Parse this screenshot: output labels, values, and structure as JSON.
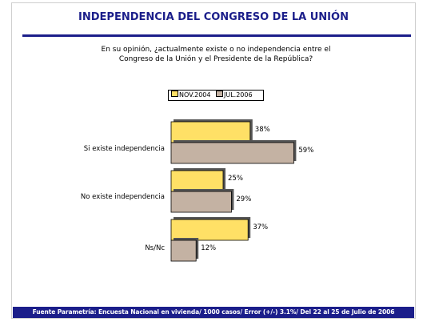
{
  "header": {
    "title": "INDEPENDENCIA DEL CONGRESO DE LA UNIÓN"
  },
  "question": {
    "line1": "En su opinión, ¿actualmente existe o no independencia entre el",
    "line2": "Congreso de la Unión y el Presidente de la República?"
  },
  "chart_data": {
    "type": "bar",
    "orientation": "horizontal",
    "categories": [
      "Si existe independencia",
      "No existe independencia",
      "Ns/Nc"
    ],
    "series": [
      {
        "name": "NOV.2004",
        "values": [
          38,
          25,
          37
        ],
        "color": "#ffe066"
      },
      {
        "name": "JUL.2006",
        "values": [
          59,
          29,
          12
        ],
        "color": "#c4b2a3"
      }
    ],
    "value_suffix": "%",
    "xlim": [
      0,
      100
    ],
    "legend_position": "top-center",
    "grid": false
  },
  "footer": {
    "text": "Fuente Parametría: Encuesta Nacional en vivienda/ 1000 casos/ Error (+/-) 3.1%/ Del 22 al 25 de Julio de 2006"
  }
}
